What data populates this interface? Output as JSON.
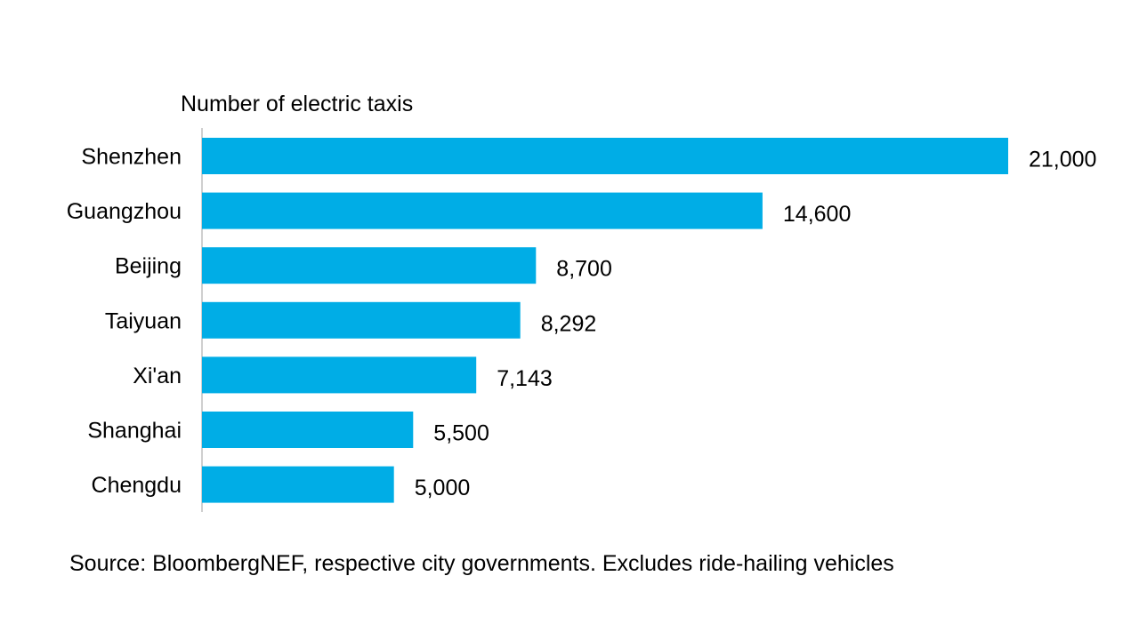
{
  "chart_data": {
    "type": "bar",
    "orientation": "horizontal",
    "title": "",
    "xlabel": "Number of  electric taxis",
    "ylabel": "",
    "categories": [
      "Shenzhen",
      "Guangzhou",
      "Beijing",
      "Taiyuan",
      "Xi'an",
      "Shanghai",
      "Chengdu"
    ],
    "values": [
      21000,
      14600,
      8700,
      8292,
      7143,
      5500,
      5000
    ],
    "value_labels": [
      "21,000",
      "14,600",
      "8,700",
      "8,292",
      "7,143",
      "5,500",
      "5,000"
    ],
    "xlim": [
      0,
      21000
    ],
    "grid": false,
    "legend": "none",
    "colors": {
      "bar": "#00ADE6",
      "axis": "#BFBFBF"
    }
  },
  "footer": {
    "source": "Source: BloombergNEF, respective city governments.  Excludes ride-hailing  vehicles"
  }
}
